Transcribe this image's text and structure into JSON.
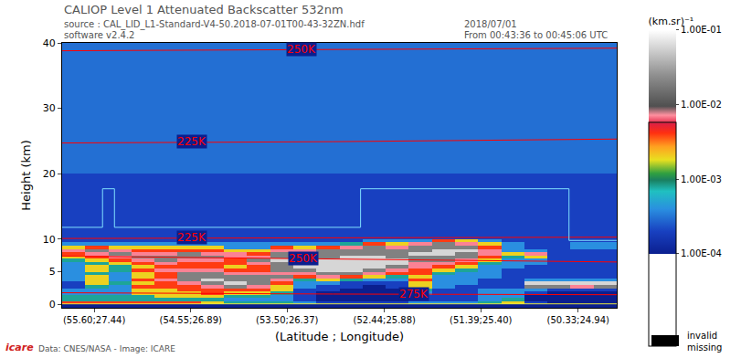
{
  "chart_data": {
    "type": "heatmap",
    "title": "CALIOP Level 1 Attenuated Backscatter 532nm",
    "header_texts": {
      "source": "source : CAL_LID_L1-Standard-V4-50.2018-07-01T00-43-32ZN.hdf",
      "software": "software v2.4.2",
      "date": "2018/07/01",
      "time": "From 00:43:36 to 00:45:06 UTC"
    },
    "x_label": "(Latitude ; Longitude)",
    "y_label": "Height (km)",
    "xlim": [
      55.95,
      49.91
    ],
    "xticks": [
      {
        "value": 55.6,
        "label": "(55.60;27.44)"
      },
      {
        "value": 54.55,
        "label": "(54.55;26.89)"
      },
      {
        "value": 53.5,
        "label": "(53.50;26.37)"
      },
      {
        "value": 52.44,
        "label": "(52.44;25.88)"
      },
      {
        "value": 51.39,
        "label": "(51.39;25.40)"
      },
      {
        "value": 50.33,
        "label": "(50.33;24.94)"
      }
    ],
    "ylim": [
      -0.5,
      40
    ],
    "yticks": [
      0,
      5,
      10,
      20,
      30,
      40
    ],
    "grid": false,
    "x_edges": [
      55.95,
      55.698,
      55.447,
      55.195,
      54.943,
      54.692,
      54.44,
      54.188,
      53.937,
      53.685,
      53.433,
      53.182,
      52.93,
      52.678,
      52.427,
      52.175,
      51.923,
      51.672,
      51.42,
      51.168,
      50.917,
      50.665,
      50.413,
      50.162,
      49.91
    ],
    "y_edges": [
      -0.5,
      0,
      0.5,
      1,
      1.5,
      2,
      2.5,
      3,
      3.5,
      4,
      4.5,
      5,
      5.5,
      6,
      6.5,
      7,
      7.5,
      8,
      8.5,
      9,
      9.5,
      10,
      12,
      14,
      17,
      20,
      25,
      30,
      35,
      40
    ],
    "cells": [
      [
        0.0001,
        0.0001,
        0.0001,
        0.0001,
        0.0001,
        0.0001,
        0.0001,
        0.0001,
        0.0001,
        0.0001,
        0.0001,
        0.0001,
        0.0001,
        0.0001,
        0.0001,
        0.0001,
        0.0001,
        0.0001,
        0.0001,
        0.0001,
        0.0001,
        0.0001,
        0.0001,
        0.0001
      ],
      [
        0.004,
        0.004,
        0.004,
        0.004,
        0.004,
        0.004,
        0.002,
        0.0008,
        0.0008,
        0.0008,
        0.0004,
        0.0002,
        0.0002,
        0.0002,
        0.0002,
        0.0004,
        0.0004,
        0.0004,
        0.0008,
        0.002,
        0.0002,
        0.0001,
        0.0001,
        0.0001
      ],
      [
        0.0008,
        0.0008,
        0.0008,
        0.0008,
        0.0008,
        0.0008,
        0.0008,
        0.0004,
        0.0004,
        0.0004,
        0.0002,
        0.0001,
        0.0001,
        0.0001,
        0.0001,
        0.0002,
        0.0002,
        0.0002,
        0.0004,
        0.0008,
        0.0001,
        0.0001,
        0.0001,
        0.0001
      ],
      [
        0.0008,
        0.0008,
        0.0008,
        0.0008,
        0.002,
        0.002,
        0.002,
        0.0008,
        0.0008,
        0.0004,
        0.0002,
        0.0001,
        0.0001,
        0.0001,
        0.0001,
        0.0002,
        0.0002,
        0.0002,
        0.0004,
        0.0004,
        0.0001,
        0.0001,
        0.0001,
        0.0001
      ],
      [
        0.0004,
        0.0004,
        0.0004,
        0.002,
        0.002,
        0.002,
        0.004,
        0.002,
        0.002,
        0.0008,
        0.0002,
        0.0001,
        0.0001,
        0.0001,
        0.0001,
        0.0004,
        0.0002,
        0.0002,
        0.0004,
        0.0004,
        0.0002,
        0.0001,
        0.0001,
        0.0001
      ],
      [
        0.0004,
        0.0004,
        0.0004,
        0.002,
        0.002,
        0.004,
        0.004,
        0.004,
        0.004,
        0.002,
        0.0002,
        0.0002,
        0.0001,
        0.0001,
        0.0001,
        0.0008,
        0.0002,
        0.0002,
        0.0004,
        0.0004,
        0.0004,
        0.0002,
        0.0002,
        0.0002
      ],
      [
        0.0002,
        0.0008,
        0.0004,
        0.004,
        0.004,
        0.004,
        0.007,
        0.02,
        0.007,
        0.002,
        0.0004,
        0.0002,
        0.0002,
        0.0001,
        0.0002,
        0.002,
        0.0004,
        0.0002,
        0.0002,
        0.0002,
        0.02,
        0.02,
        0.007,
        0.02
      ],
      [
        0.0002,
        0.002,
        0.0008,
        0.002,
        0.004,
        0.007,
        0.02,
        0.06,
        0.02,
        0.004,
        0.0004,
        0.0004,
        0.0002,
        0.0002,
        0.0002,
        0.002,
        0.0004,
        0.0004,
        0.0002,
        0.0002,
        0.06,
        0.06,
        0.06,
        0.06
      ],
      [
        0.0004,
        0.002,
        0.0004,
        0.004,
        0.007,
        0.02,
        0.06,
        0.02,
        0.02,
        0.007,
        0.0008,
        0.002,
        0.0008,
        0.0004,
        0.0004,
        0.004,
        0.0004,
        0.0004,
        0.0002,
        0.0002,
        0.0004,
        0.0004,
        0.0004,
        0.0004
      ],
      [
        0.0004,
        0.002,
        0.0004,
        0.002,
        0.004,
        0.02,
        0.02,
        0.02,
        0.02,
        0.02,
        0.004,
        0.007,
        0.004,
        0.002,
        0.0008,
        0.002,
        0.0004,
        0.0004,
        0.0004,
        0.0002,
        0.0002,
        0.0002,
        0.0002,
        0.0002
      ],
      [
        0.0004,
        0.0008,
        0.0004,
        0.002,
        0.004,
        0.02,
        0.02,
        0.007,
        0.007,
        0.007,
        0.007,
        0.02,
        0.02,
        0.007,
        0.004,
        0.004,
        0.0008,
        0.0004,
        0.0004,
        0.0002,
        0.0002,
        0.0002,
        0.0002,
        0.0002
      ],
      [
        0.0004,
        0.002,
        0.0008,
        0.004,
        0.007,
        0.007,
        0.007,
        0.004,
        0.004,
        0.02,
        0.02,
        0.06,
        0.06,
        0.02,
        0.007,
        0.004,
        0.002,
        0.0008,
        0.0004,
        0.0002,
        0.0002,
        0.0002,
        0.0002,
        0.0002
      ],
      [
        0.0004,
        0.002,
        0.0008,
        0.002,
        0.004,
        0.004,
        0.004,
        0.002,
        0.004,
        0.02,
        0.06,
        0.06,
        0.06,
        0.06,
        0.02,
        0.007,
        0.004,
        0.002,
        0.0004,
        0.0004,
        0.0002,
        0.0002,
        0.0002,
        0.0002
      ],
      [
        0.0004,
        0.0008,
        0.002,
        0.004,
        0.007,
        0.004,
        0.004,
        0.004,
        0.007,
        0.02,
        0.06,
        0.06,
        0.06,
        0.06,
        0.06,
        0.007,
        0.007,
        0.004,
        0.0008,
        0.0004,
        0.0004,
        0.0002,
        0.0002,
        0.0002
      ],
      [
        0.0008,
        0.002,
        0.004,
        0.007,
        0.02,
        0.007,
        0.007,
        0.004,
        0.02,
        0.06,
        0.06,
        0.06,
        0.06,
        0.06,
        0.06,
        0.02,
        0.02,
        0.007,
        0.002,
        0.0004,
        0.0004,
        0.0002,
        0.0002,
        0.0002
      ],
      [
        0.002,
        0.004,
        0.007,
        0.02,
        0.02,
        0.02,
        0.02,
        0.007,
        0.007,
        0.02,
        0.02,
        0.02,
        0.06,
        0.06,
        0.02,
        0.02,
        0.02,
        0.02,
        0.004,
        0.0008,
        0.002,
        0.0002,
        0.0002,
        0.0002
      ],
      [
        0.004,
        0.007,
        0.02,
        0.007,
        0.007,
        0.02,
        0.007,
        0.007,
        0.004,
        0.02,
        0.02,
        0.02,
        0.02,
        0.02,
        0.02,
        0.06,
        0.06,
        0.02,
        0.007,
        0.002,
        0.007,
        0.0002,
        0.0002,
        0.0002
      ],
      [
        0.007,
        0.02,
        0.007,
        0.004,
        0.004,
        0.004,
        0.004,
        0.002,
        0.002,
        0.007,
        0.007,
        0.02,
        0.02,
        0.02,
        0.02,
        0.02,
        0.06,
        0.06,
        0.007,
        0.0004,
        0.0004,
        0.0002,
        0.0002,
        0.0002
      ],
      [
        0.002,
        0.004,
        0.002,
        0.002,
        0.002,
        0.002,
        0.002,
        0.0004,
        0.0004,
        0.004,
        0.002,
        0.004,
        0.007,
        0.02,
        0.007,
        0.02,
        0.02,
        0.02,
        0.004,
        0.0004,
        0.0002,
        0.0002,
        0.0004,
        0.0004
      ],
      [
        0.0004,
        0.0004,
        0.0004,
        0.0004,
        0.0004,
        0.0004,
        0.0004,
        0.0004,
        0.0004,
        0.0004,
        0.0004,
        0.0004,
        0.0008,
        0.004,
        0.002,
        0.007,
        0.02,
        0.007,
        0.002,
        0.0004,
        0.0002,
        0.0002,
        0.0004,
        0.0004
      ],
      [
        0.0002,
        0.0002,
        0.0002,
        0.0002,
        0.0002,
        0.0002,
        0.0002,
        0.0002,
        0.0002,
        0.0002,
        0.0002,
        0.0002,
        0.0002,
        0.0004,
        0.0004,
        0.0004,
        0.004,
        0.002,
        0.0004,
        0.0002,
        0.0002,
        0.0002,
        0.0002,
        0.0002
      ],
      [
        0.0002,
        0.0002,
        0.0002,
        0.0002,
        0.0002,
        0.0002,
        0.0002,
        0.0002,
        0.0002,
        0.0002,
        0.0002,
        0.0002,
        0.0002,
        0.0002,
        0.0002,
        0.0002,
        0.0002,
        0.0002,
        0.0002,
        0.0002,
        0.0002,
        0.0002,
        0.0002,
        0.0002
      ],
      [
        0.0002,
        0.0002,
        0.0002,
        0.0002,
        0.0002,
        0.0002,
        0.0002,
        0.0002,
        0.0002,
        0.0002,
        0.0002,
        0.0002,
        0.0002,
        0.0002,
        0.0002,
        0.0002,
        0.0002,
        0.0002,
        0.0002,
        0.0002,
        0.0002,
        0.0002,
        0.0002,
        0.0002
      ],
      [
        0.0002,
        0.0002,
        0.0002,
        0.0002,
        0.0002,
        0.0002,
        0.0002,
        0.0002,
        0.0002,
        0.0002,
        0.0002,
        0.0002,
        0.0002,
        0.0002,
        0.0002,
        0.0002,
        0.0002,
        0.0002,
        0.0002,
        0.0002,
        0.0002,
        0.0002,
        0.0002,
        0.0002
      ],
      [
        0.0002,
        0.0002,
        0.0002,
        0.0002,
        0.0002,
        0.0002,
        0.0002,
        0.0002,
        0.0002,
        0.0002,
        0.0002,
        0.0002,
        0.0002,
        0.0002,
        0.0002,
        0.0002,
        0.0002,
        0.0002,
        0.0002,
        0.0002,
        0.0002,
        0.0002,
        0.0002,
        0.0002
      ],
      [
        0.0003,
        0.0003,
        0.0003,
        0.0003,
        0.0003,
        0.0003,
        0.0003,
        0.0003,
        0.0003,
        0.0003,
        0.0003,
        0.0003,
        0.0003,
        0.0003,
        0.0003,
        0.0003,
        0.0003,
        0.0003,
        0.0003,
        0.0003,
        0.0003,
        0.0003,
        0.0003,
        0.0003
      ],
      [
        0.0003,
        0.0003,
        0.0003,
        0.0003,
        0.0003,
        0.0003,
        0.0003,
        0.0003,
        0.0003,
        0.0003,
        0.0003,
        0.0003,
        0.0003,
        0.0003,
        0.0003,
        0.0003,
        0.0003,
        0.0003,
        0.0003,
        0.0003,
        0.0003,
        0.0003,
        0.0003,
        0.0003
      ],
      [
        0.0003,
        0.0003,
        0.0003,
        0.0003,
        0.0003,
        0.0003,
        0.0003,
        0.0003,
        0.0003,
        0.0003,
        0.0003,
        0.0003,
        0.0003,
        0.0003,
        0.0003,
        0.0003,
        0.0003,
        0.0003,
        0.0003,
        0.0003,
        0.0003,
        0.0003,
        0.0003,
        0.0003
      ],
      [
        0.0003,
        0.0003,
        0.0003,
        0.0003,
        0.0003,
        0.0003,
        0.0003,
        0.0003,
        0.0003,
        0.0003,
        0.0003,
        0.0003,
        0.0003,
        0.0003,
        0.0003,
        0.0003,
        0.0003,
        0.0003,
        0.0003,
        0.0003,
        0.0003,
        0.0003,
        0.0003,
        0.0003
      ]
    ],
    "colorbar": {
      "title": "(km.sr)⁻¹",
      "log": true,
      "range": [
        0.0001,
        0.1
      ],
      "ticks": [
        {
          "value": 0.0001,
          "label": "1.00E-04"
        },
        {
          "value": 0.001,
          "label": "1.00E-03"
        },
        {
          "value": 0.01,
          "label": "1.00E-02"
        },
        {
          "value": 0.1,
          "label": "1.00E-01"
        }
      ]
    },
    "isotherms": [
      {
        "label": "250K",
        "color": "#ff0000",
        "x": [
          55.95,
          53.0,
          49.91
        ],
        "y": [
          38.8,
          39.0,
          39.2
        ],
        "label_x": 53.34
      },
      {
        "label": "225K",
        "color": "#ff0000",
        "x": [
          55.95,
          53.0,
          49.91
        ],
        "y": [
          24.7,
          24.9,
          25.3
        ],
        "label_x": 54.54
      },
      {
        "label": "225K",
        "color": "#ff0000",
        "x": [
          55.95,
          53.0,
          49.91
        ],
        "y": [
          10.1,
          10.2,
          10.3
        ],
        "label_x": 54.54
      },
      {
        "label": "250K",
        "color": "#ff0000",
        "x": [
          55.95,
          53.0,
          49.91
        ],
        "y": [
          7.4,
          7.0,
          6.5
        ],
        "label_x": 53.32
      },
      {
        "label": "275K",
        "color": "#ff0000",
        "x": [
          55.95,
          53.0,
          49.91
        ],
        "y": [
          1.8,
          1.6,
          1.5
        ],
        "label_x": 52.12
      }
    ],
    "overlay_lines": [
      {
        "color": "#80e0ff",
        "x": [
          55.95,
          55.51,
          55.51,
          55.38,
          55.38,
          52.7,
          52.7,
          50.43,
          50.43,
          49.91
        ],
        "y": [
          11.8,
          11.8,
          17.7,
          17.7,
          11.8,
          11.8,
          17.7,
          17.7,
          9.8,
          9.8
        ]
      },
      {
        "color": "#e8e840",
        "x": [
          55.95,
          49.91
        ],
        "y": [
          0.1,
          0.1
        ]
      }
    ],
    "missing_legend": {
      "color": "#000000",
      "label_lines": [
        "invalid",
        "missing"
      ]
    },
    "footer": "Data: CNES/NASA - Image: ICARE",
    "logo_text": "icare"
  }
}
